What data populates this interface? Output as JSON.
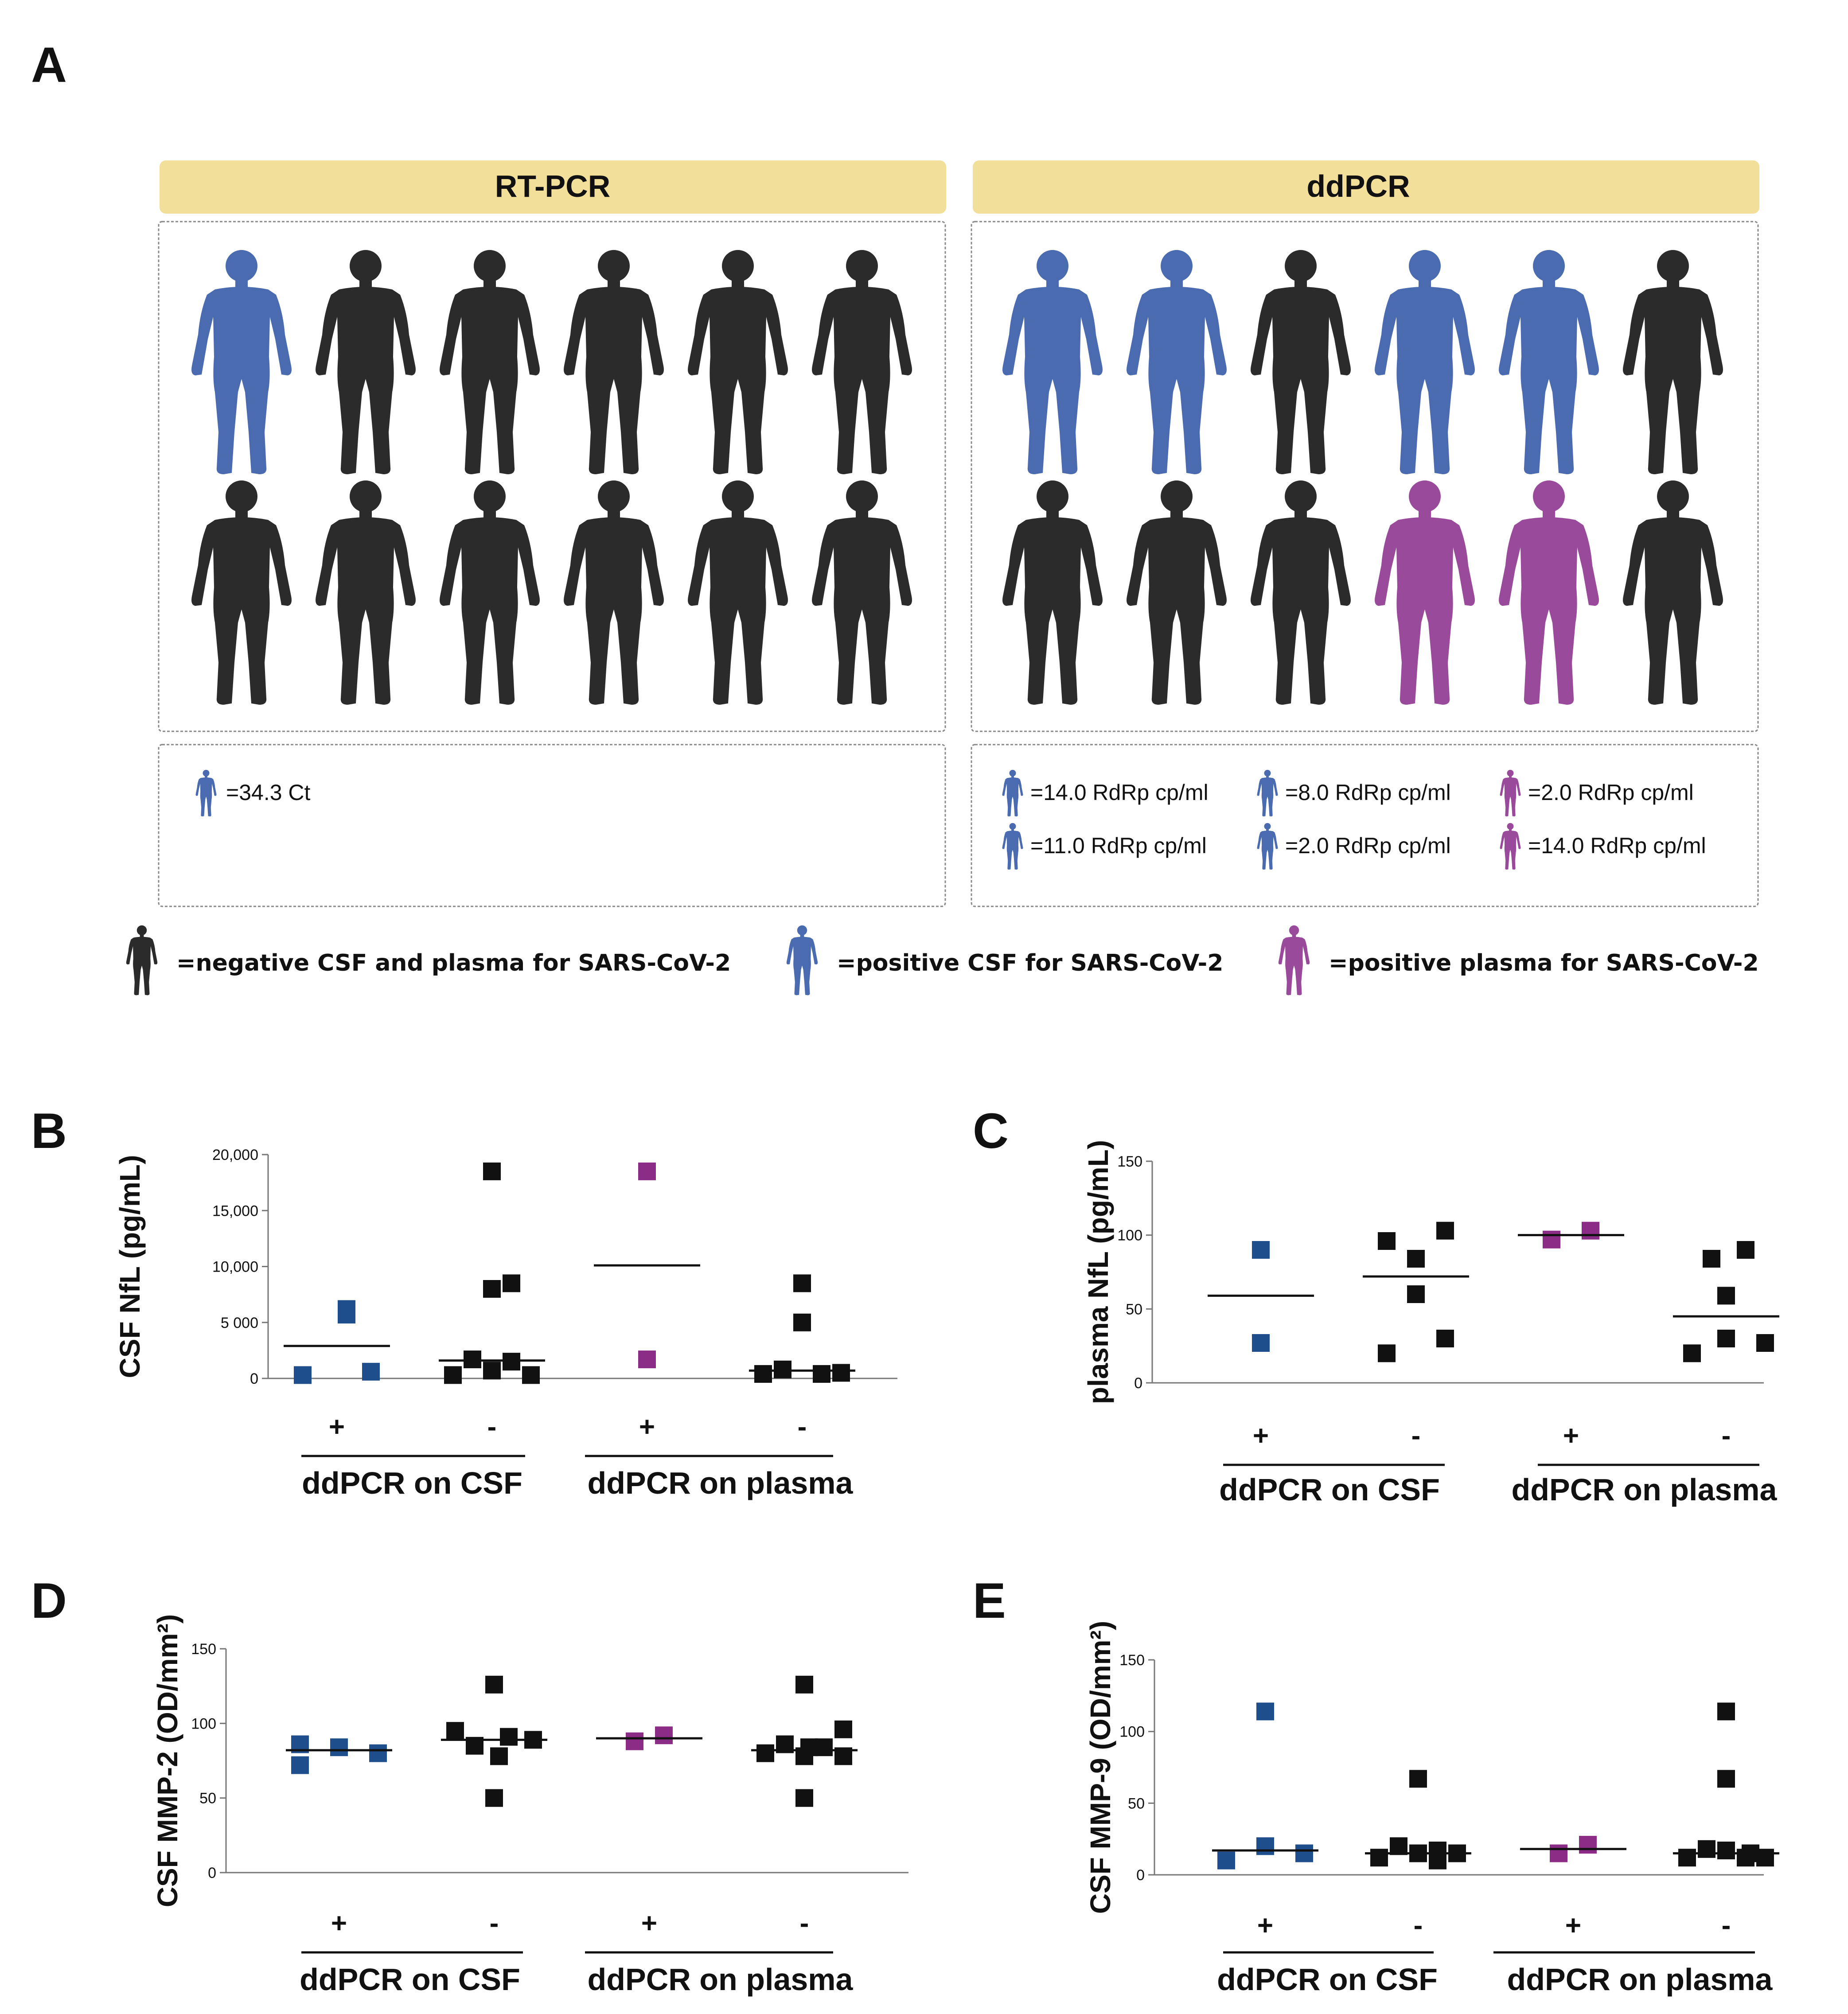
{
  "panel_a": {
    "letter": "A",
    "rtpcr": {
      "title": "RT-PCR",
      "row1": [
        "blue",
        "black",
        "black",
        "black",
        "black",
        "black"
      ],
      "row2": [
        "black",
        "black",
        "black",
        "black",
        "black",
        "black"
      ],
      "values": [
        {
          "color": "blue",
          "text": "=34.3 Ct"
        }
      ]
    },
    "ddpcr": {
      "title": "ddPCR",
      "row1": [
        "blue",
        "blue",
        "black",
        "blue",
        "blue",
        "black"
      ],
      "row2": [
        "black",
        "black",
        "black",
        "purple",
        "purple",
        "black"
      ],
      "values": [
        {
          "color": "blue",
          "text": "=14.0 RdRp cp/ml"
        },
        {
          "color": "blue",
          "text": "=8.0 RdRp cp/ml"
        },
        {
          "color": "purple",
          "text": "=2.0 RdRp cp/ml"
        },
        {
          "color": "blue",
          "text": "=11.0 RdRp cp/ml"
        },
        {
          "color": "blue",
          "text": "=2.0 RdRp cp/ml"
        },
        {
          "color": "purple",
          "text": "=14.0 RdRp cp/ml"
        }
      ]
    },
    "key": [
      {
        "color": "black",
        "text": "=negative CSF and plasma for SARS-CoV-2"
      },
      {
        "color": "blue",
        "text": "=positive CSF for SARS-CoV-2"
      },
      {
        "color": "purple",
        "text": "=positive plasma for SARS-CoV-2"
      }
    ]
  },
  "colors": {
    "blue": "#1f4e8c",
    "figure_blue": "#4a6bb0",
    "black": "#111111",
    "figure_black": "#2b2b2b",
    "purple": "#8b2d86",
    "figure_purple": "#9a4a9a",
    "header_bg": "#f2e09a"
  },
  "chart_data": [
    {
      "type": "scatter",
      "letter": "B",
      "ylabel": "CSF NfL (pg/mL)",
      "ylim": [
        0,
        20000
      ],
      "yticks": [
        0,
        5000,
        10000,
        15000,
        20000
      ],
      "ytick_labels": [
        "0",
        "5 000",
        "10,000",
        "15,000",
        "20,000"
      ],
      "categories": [
        "+",
        "-",
        "+",
        "-"
      ],
      "groups": [
        "ddPCR on CSF",
        "ddPCR on plasma"
      ],
      "series": [
        {
          "color": "blue",
          "points": [
            {
              "x": -0.35,
              "y": 300
            },
            {
              "x": 0.1,
              "y": 5700
            },
            {
              "x": 0.1,
              "y": 6200
            },
            {
              "x": 0.35,
              "y": 600
            }
          ],
          "mean": 2900
        },
        {
          "color": "black",
          "points": [
            {
              "x": -0.4,
              "y": 300
            },
            {
              "x": -0.2,
              "y": 1700
            },
            {
              "x": 0,
              "y": 18500
            },
            {
              "x": 0,
              "y": 8000
            },
            {
              "x": 0,
              "y": 700
            },
            {
              "x": 0.2,
              "y": 8500
            },
            {
              "x": 0.2,
              "y": 1500
            },
            {
              "x": 0.4,
              "y": 300
            }
          ],
          "mean": 1600
        },
        {
          "color": "purple",
          "points": [
            {
              "x": 0,
              "y": 18500
            },
            {
              "x": 0,
              "y": 1700
            }
          ],
          "mean": 10100
        },
        {
          "color": "black",
          "points": [
            {
              "x": -0.4,
              "y": 400
            },
            {
              "x": -0.2,
              "y": 800
            },
            {
              "x": 0,
              "y": 8500
            },
            {
              "x": 0,
              "y": 5000
            },
            {
              "x": 0.2,
              "y": 400
            },
            {
              "x": 0.4,
              "y": 500
            }
          ],
          "mean": 700
        }
      ]
    },
    {
      "type": "scatter",
      "letter": "C",
      "ylabel": "plasma NfL (pg/mL)",
      "ylim": [
        0,
        150
      ],
      "yticks": [
        0,
        50,
        100,
        150
      ],
      "ytick_labels": [
        "0",
        "50",
        "100",
        "150"
      ],
      "categories": [
        "+",
        "-",
        "+",
        "-"
      ],
      "groups": [
        "ddPCR on CSF",
        "ddPCR on plasma"
      ],
      "series": [
        {
          "color": "blue",
          "points": [
            {
              "x": 0,
              "y": 90
            },
            {
              "x": 0,
              "y": 27
            }
          ],
          "mean": 59
        },
        {
          "color": "black",
          "points": [
            {
              "x": -0.3,
              "y": 96
            },
            {
              "x": -0.3,
              "y": 20
            },
            {
              "x": 0,
              "y": 84
            },
            {
              "x": 0,
              "y": 60
            },
            {
              "x": 0.3,
              "y": 103
            },
            {
              "x": 0.3,
              "y": 30
            }
          ],
          "mean": 72
        },
        {
          "color": "purple",
          "points": [
            {
              "x": -0.2,
              "y": 97
            },
            {
              "x": 0.2,
              "y": 103
            }
          ],
          "mean": 100
        },
        {
          "color": "black",
          "points": [
            {
              "x": -0.35,
              "y": 20
            },
            {
              "x": -0.15,
              "y": 84
            },
            {
              "x": 0,
              "y": 59
            },
            {
              "x": 0,
              "y": 30
            },
            {
              "x": 0.2,
              "y": 90
            },
            {
              "x": 0.4,
              "y": 27
            }
          ],
          "mean": 45
        }
      ]
    },
    {
      "type": "scatter",
      "letter": "D",
      "ylabel": "CSF MMP-2 (OD/mm²)",
      "ylim": [
        0,
        150
      ],
      "yticks": [
        0,
        50,
        100,
        150
      ],
      "ytick_labels": [
        "0",
        "50",
        "100",
        "150"
      ],
      "categories": [
        "+",
        "-",
        "+",
        "-"
      ],
      "groups": [
        "ddPCR on CSF",
        "ddPCR on plasma"
      ],
      "series": [
        {
          "color": "blue",
          "points": [
            {
              "x": -0.4,
              "y": 86
            },
            {
              "x": -0.4,
              "y": 72
            },
            {
              "x": 0,
              "y": 84
            },
            {
              "x": 0.4,
              "y": 80
            }
          ],
          "mean": 82
        },
        {
          "color": "black",
          "points": [
            {
              "x": -0.4,
              "y": 95
            },
            {
              "x": -0.2,
              "y": 85
            },
            {
              "x": 0,
              "y": 126
            },
            {
              "x": 0,
              "y": 50
            },
            {
              "x": 0.05,
              "y": 78
            },
            {
              "x": 0.15,
              "y": 91
            },
            {
              "x": 0.4,
              "y": 89
            }
          ],
          "mean": 89
        },
        {
          "color": "purple",
          "points": [
            {
              "x": -0.15,
              "y": 88
            },
            {
              "x": 0.15,
              "y": 92
            }
          ],
          "mean": 90
        },
        {
          "color": "black",
          "points": [
            {
              "x": -0.4,
              "y": 80
            },
            {
              "x": -0.2,
              "y": 86
            },
            {
              "x": 0,
              "y": 126
            },
            {
              "x": 0,
              "y": 50
            },
            {
              "x": 0,
              "y": 78
            },
            {
              "x": 0.05,
              "y": 84
            },
            {
              "x": 0.2,
              "y": 84
            },
            {
              "x": 0.4,
              "y": 96
            },
            {
              "x": 0.4,
              "y": 78
            }
          ],
          "mean": 82
        }
      ]
    },
    {
      "type": "scatter",
      "letter": "E",
      "ylabel": "CSF MMP-9 (OD/mm²)",
      "ylim": [
        0,
        150
      ],
      "yticks": [
        0,
        50,
        100,
        150
      ],
      "ytick_labels": [
        "0",
        "50",
        "100",
        "150"
      ],
      "categories": [
        "+",
        "-",
        "+",
        "-"
      ],
      "groups": [
        "ddPCR on CSF",
        "ddPCR on plasma"
      ],
      "series": [
        {
          "color": "blue",
          "points": [
            {
              "x": -0.4,
              "y": 10
            },
            {
              "x": 0,
              "y": 114
            },
            {
              "x": 0,
              "y": 20
            },
            {
              "x": 0.4,
              "y": 15
            }
          ],
          "mean": 17
        },
        {
          "color": "black",
          "points": [
            {
              "x": -0.4,
              "y": 12
            },
            {
              "x": -0.2,
              "y": 20
            },
            {
              "x": 0,
              "y": 67
            },
            {
              "x": 0,
              "y": 15
            },
            {
              "x": 0.2,
              "y": 17
            },
            {
              "x": 0.2,
              "y": 10
            },
            {
              "x": 0.4,
              "y": 15
            }
          ],
          "mean": 15
        },
        {
          "color": "purple",
          "points": [
            {
              "x": -0.15,
              "y": 15
            },
            {
              "x": 0.15,
              "y": 21
            }
          ],
          "mean": 18
        },
        {
          "color": "black",
          "points": [
            {
              "x": -0.4,
              "y": 12
            },
            {
              "x": -0.2,
              "y": 18
            },
            {
              "x": 0,
              "y": 114
            },
            {
              "x": 0,
              "y": 67
            },
            {
              "x": 0,
              "y": 17
            },
            {
              "x": 0.2,
              "y": 12
            },
            {
              "x": 0.25,
              "y": 15
            },
            {
              "x": 0.4,
              "y": 12
            }
          ],
          "mean": 15
        }
      ]
    }
  ]
}
